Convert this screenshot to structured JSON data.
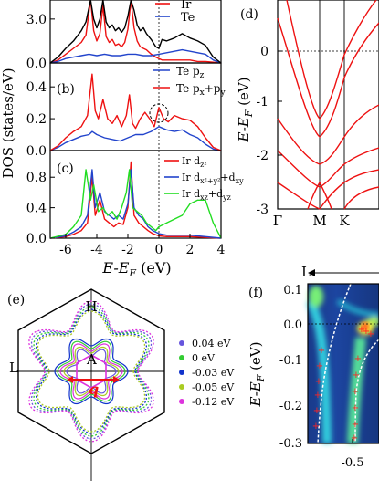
{
  "chart_data": [
    {
      "id": "a",
      "type": "line",
      "panel_label": "",
      "ylim": [
        0,
        4.3
      ],
      "xlim": [
        -7,
        4
      ],
      "ytick_labels": [
        "0.0",
        "3.0"
      ],
      "yticks": [
        0,
        3
      ],
      "series": [
        {
          "name": "Ir",
          "color": "#ee1111",
          "x": [
            -7,
            -6.5,
            -6,
            -5.5,
            -5,
            -4.7,
            -4.4,
            -4.2,
            -4.0,
            -3.8,
            -3.6,
            -3.4,
            -3.2,
            -3.0,
            -2.8,
            -2.6,
            -2.4,
            -2.2,
            -2.0,
            -1.8,
            -1.6,
            -1.4,
            -1.2,
            -1.0,
            -0.8,
            -0.5,
            -0.2,
            0,
            0.2,
            0.5,
            1,
            1.5,
            2,
            2.5,
            3,
            3.5,
            4
          ],
          "y": [
            0,
            0.2,
            0.6,
            1.0,
            1.4,
            1.9,
            4.3,
            2.2,
            1.5,
            2.0,
            3.9,
            1.8,
            1.4,
            1.6,
            1.2,
            1.3,
            1.1,
            1.4,
            2.3,
            4.3,
            2.4,
            1.5,
            1.1,
            1.0,
            0.9,
            0.6,
            0.4,
            0.3,
            0.2,
            0.2,
            0.2,
            0.2,
            0.2,
            0.1,
            0.1,
            0.05,
            0
          ]
        },
        {
          "name": "Te",
          "color": "#2244cc",
          "x": [
            -7,
            -6.5,
            -6,
            -5.5,
            -5,
            -4.5,
            -4,
            -3.5,
            -3,
            -2.5,
            -2,
            -1.5,
            -1,
            -0.5,
            0,
            0.5,
            1,
            1.5,
            2,
            2.5,
            3,
            3.5,
            4
          ],
          "y": [
            0,
            0.1,
            0.3,
            0.4,
            0.5,
            0.6,
            0.5,
            0.6,
            0.5,
            0.5,
            0.6,
            0.6,
            0.5,
            0.5,
            0.6,
            0.7,
            0.8,
            0.9,
            0.8,
            0.7,
            0.6,
            0.2,
            0
          ]
        },
        {
          "name": "",
          "color": "#000000",
          "x": [
            -7,
            -6.5,
            -6,
            -5.5,
            -5,
            -4.7,
            -4.4,
            -4.2,
            -4.0,
            -3.8,
            -3.6,
            -3.4,
            -3.2,
            -3.0,
            -2.8,
            -2.6,
            -2.4,
            -2.2,
            -2.0,
            -1.8,
            -1.6,
            -1.4,
            -1.2,
            -1.0,
            -0.8,
            -0.5,
            -0.2,
            0,
            0.2,
            0.5,
            1,
            1.5,
            2,
            2.5,
            3,
            3.5,
            4
          ],
          "y": [
            0,
            0.4,
            1.0,
            1.5,
            2.2,
            2.8,
            4.3,
            3.0,
            2.4,
            3.0,
            4.3,
            2.8,
            2.4,
            2.6,
            2.2,
            2.4,
            2.1,
            2.4,
            3.2,
            4.3,
            3.6,
            2.6,
            2.2,
            2.4,
            2.0,
            1.6,
            1.1,
            1.0,
            1.6,
            1.5,
            1.7,
            2.0,
            1.7,
            1.5,
            1.2,
            0.4,
            0
          ]
        }
      ]
    },
    {
      "id": "b",
      "type": "line",
      "panel_label": "(b)",
      "ylim": [
        0,
        0.55
      ],
      "xlim": [
        -7,
        4
      ],
      "ytick_labels": [
        "0.0",
        "0.2",
        "0.4"
      ],
      "yticks": [
        0,
        0.2,
        0.4
      ],
      "series": [
        {
          "name": "Te p_z",
          "color": "#2244cc",
          "x": [
            -7,
            -6.5,
            -6,
            -5.5,
            -5,
            -4.5,
            -4.3,
            -4,
            -3.5,
            -3,
            -2.5,
            -2,
            -1.5,
            -1,
            -0.5,
            0,
            0.5,
            1,
            1.5,
            2,
            2.5,
            3,
            3.5,
            4
          ],
          "y": [
            0,
            0.02,
            0.05,
            0.07,
            0.09,
            0.1,
            0.12,
            0.1,
            0.08,
            0.07,
            0.06,
            0.08,
            0.1,
            0.1,
            0.12,
            0.15,
            0.13,
            0.12,
            0.13,
            0.1,
            0.08,
            0.04,
            0.01,
            0
          ]
        },
        {
          "name": "Te p_x+p_y",
          "color": "#ee1111",
          "x": [
            -7,
            -6.5,
            -6,
            -5.5,
            -5,
            -4.6,
            -4.3,
            -4.1,
            -3.9,
            -3.6,
            -3.3,
            -3.0,
            -2.7,
            -2.4,
            -2.1,
            -1.9,
            -1.7,
            -1.5,
            -1.2,
            -0.9,
            -0.6,
            -0.3,
            0,
            0.3,
            0.6,
            1,
            1.5,
            2,
            2.5,
            3,
            3.5,
            4
          ],
          "y": [
            0,
            0.03,
            0.08,
            0.12,
            0.15,
            0.22,
            0.48,
            0.25,
            0.2,
            0.32,
            0.2,
            0.17,
            0.22,
            0.15,
            0.22,
            0.35,
            0.17,
            0.14,
            0.2,
            0.24,
            0.2,
            0.15,
            0.27,
            0.2,
            0.18,
            0.22,
            0.2,
            0.19,
            0.15,
            0.08,
            0.02,
            0
          ]
        }
      ]
    },
    {
      "id": "c",
      "type": "line",
      "panel_label": "(c)",
      "ylim": [
        0,
        1.15
      ],
      "xlim": [
        -7,
        4
      ],
      "ytick_labels": [
        "0.0",
        "0.4",
        "0.8"
      ],
      "yticks": [
        0,
        0.4,
        0.8
      ],
      "xtick_labels": [
        "-6",
        "-4",
        "-2",
        "0",
        "2",
        "4"
      ],
      "xticks": [
        -6,
        -4,
        -2,
        0,
        2,
        4
      ],
      "xlabel": "E-E_F (eV)",
      "series": [
        {
          "name": "Ir d_z2",
          "color": "#ee1111",
          "x": [
            -7,
            -6,
            -5.5,
            -5,
            -4.6,
            -4.3,
            -4.1,
            -3.8,
            -3.5,
            -3.2,
            -2.9,
            -2.6,
            -2.3,
            -2.0,
            -1.8,
            -1.6,
            -1.3,
            -1.0,
            -0.7,
            -0.4,
            0,
            0.5,
            1,
            2,
            3,
            4
          ],
          "y": [
            0,
            0.02,
            0.05,
            0.1,
            0.2,
            0.8,
            0.3,
            0.5,
            0.25,
            0.2,
            0.15,
            0.2,
            0.18,
            0.4,
            1.0,
            0.3,
            0.2,
            0.15,
            0.1,
            0.06,
            0.03,
            0.02,
            0.02,
            0.02,
            0.01,
            0
          ]
        },
        {
          "name": "Ir d_x2+y2+d_xy",
          "color": "#2244cc",
          "x": [
            -7,
            -6,
            -5.5,
            -5,
            -4.6,
            -4.3,
            -4.1,
            -3.8,
            -3.5,
            -3.2,
            -2.9,
            -2.6,
            -2.3,
            -2.0,
            -1.8,
            -1.6,
            -1.3,
            -1.0,
            -0.7,
            -0.4,
            0,
            0.5,
            1,
            2,
            3,
            4
          ],
          "y": [
            0,
            0.03,
            0.08,
            0.15,
            0.3,
            0.9,
            0.4,
            0.6,
            0.35,
            0.3,
            0.25,
            0.3,
            0.25,
            0.45,
            0.9,
            0.4,
            0.3,
            0.25,
            0.15,
            0.1,
            0.06,
            0.04,
            0.04,
            0.04,
            0.02,
            0
          ]
        },
        {
          "name": "Ir d_xz+d_yz",
          "color": "#22dd22",
          "x": [
            -7,
            -6,
            -5.5,
            -5,
            -4.7,
            -4.4,
            -4.2,
            -3.9,
            -3.6,
            -3.3,
            -3.0,
            -2.7,
            -2.4,
            -2.1,
            -1.9,
            -1.7,
            -1.4,
            -1.1,
            -0.8,
            -0.5,
            -0.2,
            0,
            0.5,
            1,
            1.5,
            2,
            2.5,
            3,
            3.5,
            4
          ],
          "y": [
            0,
            0.05,
            0.15,
            0.3,
            0.9,
            0.5,
            0.7,
            0.35,
            0.4,
            0.3,
            0.35,
            0.25,
            0.4,
            0.6,
            0.9,
            0.4,
            0.35,
            0.3,
            0.2,
            0.15,
            0.1,
            0.15,
            0.2,
            0.25,
            0.3,
            0.45,
            0.5,
            0.5,
            0.2,
            0
          ]
        }
      ]
    }
  ],
  "panels": {
    "a": {
      "legend": [
        {
          "label": "Ir",
          "color": "#ee1111"
        },
        {
          "label": "Te",
          "color": "#2244cc"
        }
      ]
    },
    "b": {
      "label": "(b)",
      "legend": [
        {
          "label": "Te p",
          "sub": "z",
          "color": "#2244cc"
        },
        {
          "label": "Te p",
          "sub": "x",
          "mid": "+p",
          "sub2": "y",
          "color": "#ee1111"
        }
      ]
    },
    "c": {
      "label": "(c)",
      "legend": [
        {
          "label": "Ir d",
          "sub": "z²",
          "color": "#ee1111"
        },
        {
          "label": "Ir d",
          "sub": "x²+y²",
          "mid": "+d",
          "sub2": "xy",
          "color": "#2244cc"
        },
        {
          "label": "Ir d",
          "sub": "xz",
          "mid": "+d",
          "sub2": "yz",
          "color": "#22dd22"
        }
      ]
    },
    "dos_ylabel": "DOS (states/eV)",
    "dos_xlabel_main": "E-E",
    "dos_xlabel_sub": "F",
    "dos_xlabel_unit": " (eV)",
    "d": {
      "label": "(d)",
      "ylabel_main": "E-E",
      "ylabel_sub": "F",
      "ylabel_unit": " (eV)",
      "ytick_labels": [
        "0",
        "-1",
        "-2",
        "-3"
      ],
      "kpoints": [
        "Γ",
        "M",
        "K"
      ]
    },
    "e": {
      "label": "(e)",
      "points": {
        "top": "H",
        "left": "L",
        "center": "A"
      },
      "vector_label": "q",
      "legend": [
        {
          "label": "0.04 eV",
          "color": "#6655dd"
        },
        {
          "label": "0 eV",
          "color": "#33cc33"
        },
        {
          "label": "-0.03 eV",
          "color": "#1133cc"
        },
        {
          "label": "-0.05 eV",
          "color": "#aacc22"
        },
        {
          "label": "-0.12 eV",
          "color": "#dd33dd"
        }
      ]
    },
    "f": {
      "label": "(f)",
      "top_label": "L",
      "ylabel_main": "E-E",
      "ylabel_sub": "F",
      "ylabel_unit": " (eV)",
      "ytick_labels": [
        "0.1",
        "0.0",
        "-0.1",
        "-0.2",
        "-0.3"
      ],
      "xtick_label": "-0.5"
    }
  }
}
